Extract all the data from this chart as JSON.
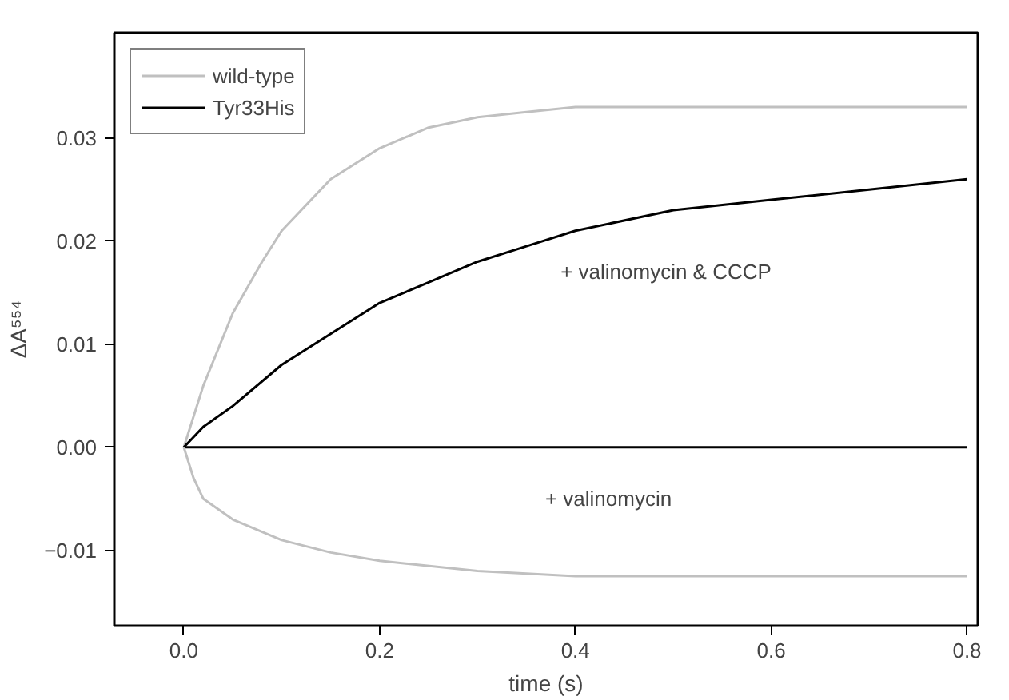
{
  "chart_data": {
    "type": "line",
    "xlabel": "time (s)",
    "ylabel": "ΔA⁵⁵⁴",
    "xlim": [
      -0.071,
      0.811
    ],
    "ylim": [
      -0.0173,
      0.0402
    ],
    "xticks": [
      {
        "value": 0,
        "label": "0.0"
      },
      0.2,
      0.4,
      0.6,
      0.8
    ],
    "yticks": [
      -0.01,
      {
        "value": 0,
        "label": "0.00"
      },
      0.01,
      0.02,
      0.03
    ],
    "grid": false,
    "legend": "top left",
    "line_style": "solid",
    "marker": "none",
    "series": [
      {
        "name": "wild-type",
        "color": "#c0c0c0",
        "x": [
          0,
          0.02,
          0.05,
          0.08,
          0.1,
          0.15,
          0.2,
          0.25,
          0.3,
          0.35,
          0.4,
          0.5,
          0.6,
          0.7,
          0.8
        ],
        "values": [
          0,
          0.006,
          0.013,
          0.018,
          0.021,
          0.026,
          0.029,
          0.031,
          0.032,
          0.0325,
          0.033,
          0.033,
          0.033,
          0.033,
          0.033
        ]
      },
      {
        "name": "Tyr33His",
        "color": "#000000",
        "x": [
          0,
          0.02,
          0.05,
          0.1,
          0.15,
          0.2,
          0.25,
          0.3,
          0.35,
          0.4,
          0.5,
          0.6,
          0.7,
          0.8
        ],
        "values": [
          0,
          0.002,
          0.004,
          0.008,
          0.011,
          0.014,
          0.016,
          0.018,
          0.0195,
          0.021,
          0.023,
          0.024,
          0.025,
          0.026
        ]
      },
      {
        "color": "#000000",
        "x": [
          0,
          0.1,
          0.2,
          0.3,
          0.4,
          0.5,
          0.6,
          0.7,
          0.8
        ],
        "values": [
          0,
          0,
          0,
          0,
          0,
          0,
          0,
          0,
          0
        ]
      },
      {
        "color": "#c0c0c0",
        "x": [
          0,
          0.01,
          0.02,
          0.05,
          0.1,
          0.15,
          0.2,
          0.3,
          0.4,
          0.5,
          0.6,
          0.7,
          0.8
        ],
        "values": [
          0,
          -0.003,
          -0.005,
          -0.007,
          -0.009,
          -0.0102,
          -0.011,
          -0.012,
          -0.0125,
          -0.0125,
          -0.0125,
          -0.0125,
          -0.0125
        ]
      }
    ],
    "annotations": [
      "+ valinomycin & CCCP",
      "+ valinomycin"
    ]
  }
}
